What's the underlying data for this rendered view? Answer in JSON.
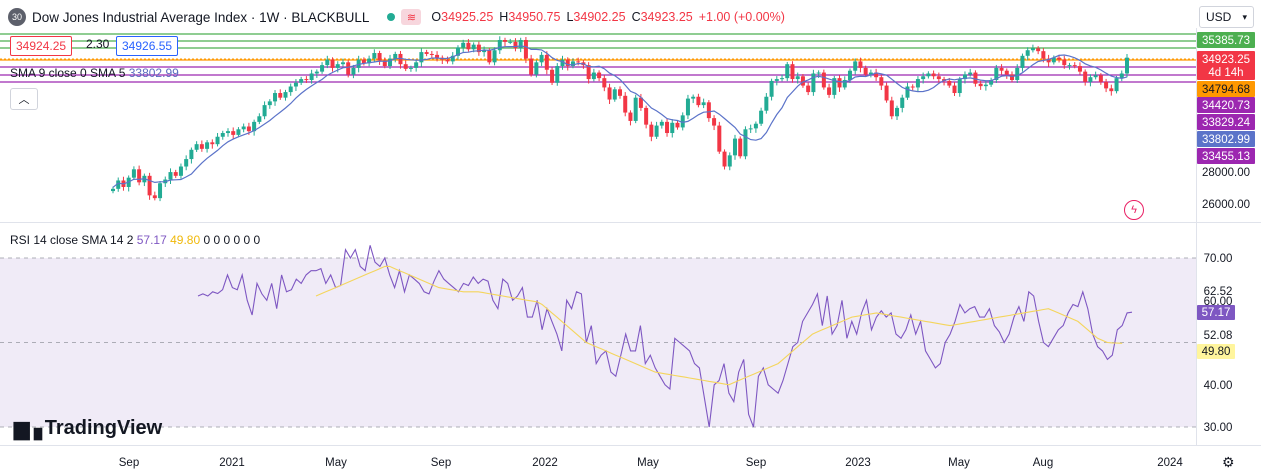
{
  "header": {
    "badge": "30",
    "title": "Dow Jones Industrial Average Index · 1W · BLACKBULL",
    "o_label": "O",
    "o": "34925.25",
    "h_label": "H",
    "h": "34950.75",
    "l_label": "L",
    "l": "34902.25",
    "c_label": "C",
    "c": "34923.25",
    "change": "+1.00 (+0.00%)"
  },
  "trade": {
    "sell": "34924.25",
    "spread": "2.30",
    "buy": "34926.55"
  },
  "sma_legend": {
    "label": "SMA 9 close 0 SMA 5",
    "value": "33802.99"
  },
  "rsi_legend": {
    "label": "RSI 14 close SMA 14 2",
    "rsi": "57.17",
    "sma": "49.80",
    "zeros": "0 0 0 0 0 0"
  },
  "currency": "USD",
  "brand": "TradingView",
  "icons": {
    "collapse": "chevron-up-icon",
    "settings": "gear-icon",
    "alert": "lightning-icon",
    "dropdown": "chevron-down-icon"
  },
  "colors": {
    "up": "#22ab94",
    "down": "#f23645",
    "sma": "#5b73c9",
    "rsi": "#7e57c2",
    "rsi_sma": "#f4d55c",
    "green_line": "#4caf50",
    "purple_line": "#9c27b0",
    "orange_line": "#ff9800"
  },
  "chart_data": {
    "type": "candlestick",
    "x_ticks": [
      "Sep",
      "2021",
      "May",
      "Sep",
      "2022",
      "May",
      "Sep",
      "2023",
      "May",
      "Aug",
      "2024"
    ],
    "y_ticks": [
      "28000.00",
      "26000.00"
    ],
    "price_tags": [
      {
        "value": "35385.73",
        "color": "#4caf50"
      },
      {
        "value": "34923.25",
        "color": "#f23645"
      },
      {
        "value": "4d 14h",
        "color": "#f23645"
      },
      {
        "value": "34794.68",
        "color": "#ff9800"
      },
      {
        "value": "34420.73",
        "color": "#9c27b0"
      },
      {
        "value": "33829.24",
        "color": "#9c27b0"
      },
      {
        "value": "33802.99",
        "color": "#5b73c9"
      },
      {
        "value": "33455.13",
        "color": "#9c27b0"
      }
    ],
    "horizontal_levels": [
      {
        "price": 35385.73,
        "color": "#4caf50"
      },
      {
        "price": 35150,
        "color": "#4caf50"
      },
      {
        "price": 34950,
        "color": "#4caf50"
      },
      {
        "price": 34794.68,
        "color": "#ff9800"
      },
      {
        "price": 34420.73,
        "color": "#9c27b0"
      },
      {
        "price": 33829.24,
        "color": "#9c27b0"
      },
      {
        "price": 33455.13,
        "color": "#9c27b0"
      }
    ],
    "last_close": 34923.25,
    "close_series": [
      27900,
      28350,
      28000,
      28500,
      28950,
      28250,
      28600,
      27550,
      27400,
      28200,
      28400,
      28800,
      28600,
      29100,
      29500,
      30000,
      30300,
      30050,
      30400,
      30300,
      30700,
      30900,
      31000,
      30800,
      31100,
      31250,
      31000,
      31500,
      31800,
      32400,
      32600,
      33050,
      32800,
      33100,
      33400,
      33600,
      33800,
      33750,
      34100,
      34200,
      34550,
      34850,
      34400,
      34600,
      34700,
      34050,
      34400,
      34850,
      34650,
      34900,
      35200,
      34800,
      34500,
      34900,
      35150,
      34600,
      34350,
      34400,
      34700,
      35250,
      35150,
      35100,
      34950,
      34850,
      34750,
      35050,
      35500,
      35750,
      35400,
      35650,
      35250,
      35350,
      34700,
      35350,
      35900,
      35800,
      35800,
      35450,
      35900,
      34900,
      34050,
      34700,
      35100,
      34300,
      33600,
      34500,
      34850,
      34500,
      34750,
      34700,
      34550,
      33800,
      34150,
      33850,
      33350,
      32700,
      33250,
      32900,
      32000,
      31550,
      32800,
      32250,
      31350,
      30700,
      31300,
      31500,
      30900,
      31450,
      31200,
      31850,
      32750,
      32850,
      32400,
      32550,
      31700,
      31300,
      29900,
      29100,
      29700,
      30600,
      29650,
      31100,
      31150,
      31400,
      32100,
      32850,
      33700,
      33800,
      33850,
      34600,
      33800,
      33950,
      33450,
      33100,
      34100,
      34150,
      33350,
      32950,
      33850,
      33350,
      33750,
      34250,
      34750,
      34400,
      34050,
      34150,
      33900,
      33450,
      32650,
      31800,
      32250,
      32800,
      33400,
      33350,
      33800,
      33950,
      34100,
      33950,
      33800,
      33700,
      33450,
      33050,
      33800,
      34050,
      34150,
      33550,
      33420,
      33500,
      33750,
      34400,
      34250,
      34050,
      33750,
      34400,
      35050,
      35350,
      35450,
      35300,
      34900,
      34700,
      34950,
      34850,
      34550,
      34550,
      34500,
      34200,
      33650,
      33900,
      34000,
      33650,
      33300,
      33150,
      33850,
      34100,
      34950
    ],
    "rsi": {
      "y_ticks": [
        "70.00",
        "62.52",
        "60.00",
        "52.08",
        "40.00",
        "30.00"
      ],
      "band_upper": 70,
      "band_lower": 50,
      "current": 57.17,
      "current_sma": 49.8,
      "values": [
        61,
        61.5,
        61,
        62,
        61.6,
        62.5,
        66,
        63,
        62.5,
        66,
        60,
        56.5,
        64,
        61.5,
        60,
        64,
        58,
        66,
        62,
        62.5,
        65,
        64,
        66,
        67,
        67,
        67.5,
        64,
        66,
        63,
        63.5,
        72,
        70,
        72,
        68,
        67,
        73,
        69,
        68,
        70,
        66,
        63,
        67,
        62,
        66,
        65,
        64,
        62,
        61.5,
        64.5,
        67,
        65,
        64,
        63,
        62,
        64,
        63.5,
        65.5,
        64,
        65,
        64.5,
        60,
        58,
        65,
        64,
        60,
        61,
        63,
        56,
        56,
        60,
        53,
        58,
        55,
        52,
        48,
        60,
        58,
        62,
        61.5,
        50,
        54,
        45,
        47,
        48,
        43,
        42,
        47,
        52,
        48,
        48,
        54,
        45,
        47,
        44,
        42,
        40,
        39,
        51,
        50,
        49,
        48,
        45,
        44,
        37,
        30,
        40,
        41,
        45,
        38,
        36,
        43,
        46,
        33,
        30,
        42,
        44,
        40,
        39,
        38,
        41,
        45,
        49,
        50,
        55,
        57,
        59,
        61.5,
        54,
        61,
        52,
        54,
        60,
        51,
        55,
        52,
        57,
        60,
        53,
        56,
        57.5,
        56,
        57,
        52,
        51,
        53,
        56.5,
        52,
        55,
        48,
        46,
        44,
        45,
        50,
        52,
        55,
        59,
        57,
        58,
        58.5,
        56,
        56,
        58,
        54,
        52.5,
        50,
        52,
        56,
        58.5,
        55,
        62,
        61,
        55,
        50,
        49,
        51,
        53,
        54,
        57,
        59,
        58.5,
        62,
        58,
        52,
        49,
        48,
        46,
        47,
        53,
        54,
        57,
        57.17
      ],
      "sma_values": [
        null,
        null,
        null,
        null,
        null,
        null,
        null,
        null,
        null,
        null,
        null,
        null,
        null,
        null,
        null,
        null,
        null,
        null,
        null,
        null,
        null,
        null,
        null,
        null,
        61,
        61.5,
        62,
        62.5,
        63,
        63.5,
        64,
        64.5,
        65,
        65.5,
        66,
        66.5,
        67,
        67.5,
        68,
        68,
        67.5,
        67,
        66.5,
        66,
        65.5,
        65,
        64.5,
        64,
        63.5,
        63,
        62.8,
        62.6,
        62.4,
        62.2,
        62,
        62,
        62,
        62,
        61.8,
        61.6,
        61.4,
        61.2,
        61,
        60.8,
        60.6,
        60.4,
        60.2,
        60,
        59.8,
        59.6,
        59,
        58,
        57,
        56,
        55,
        54,
        53,
        52,
        51,
        50,
        49.5,
        49,
        48.5,
        48,
        47.5,
        47,
        46.5,
        46,
        45.5,
        45,
        44.5,
        44,
        43.5,
        43,
        42.8,
        42.6,
        42.4,
        42.2,
        42,
        41.8,
        41.6,
        41.4,
        41.2,
        41,
        40.8,
        40.6,
        40.4,
        40.2,
        40,
        40.5,
        41,
        41.5,
        42,
        42.5,
        43,
        43.5,
        44,
        44.5,
        45,
        46,
        47,
        48,
        49,
        50,
        51,
        52,
        52.5,
        53,
        53.5,
        54,
        54.5,
        55,
        55.5,
        56,
        56.2,
        56.4,
        56.6,
        56.8,
        57,
        56.8,
        56.6,
        56.4,
        56.2,
        56,
        55.8,
        55.6,
        55.4,
        55.2,
        55,
        54.8,
        54.6,
        54.4,
        54.2,
        54,
        54.2,
        54.4,
        54.6,
        54.8,
        55,
        55.2,
        55.4,
        55.6,
        55.8,
        56,
        56.2,
        56.4,
        56.6,
        56.8,
        57,
        57.2,
        57.4,
        57.6,
        57.8,
        58,
        57.5,
        57,
        56.5,
        56,
        55.5,
        55,
        54,
        53,
        52,
        51,
        50.5,
        50,
        49.9,
        49.85,
        49.8
      ]
    }
  }
}
